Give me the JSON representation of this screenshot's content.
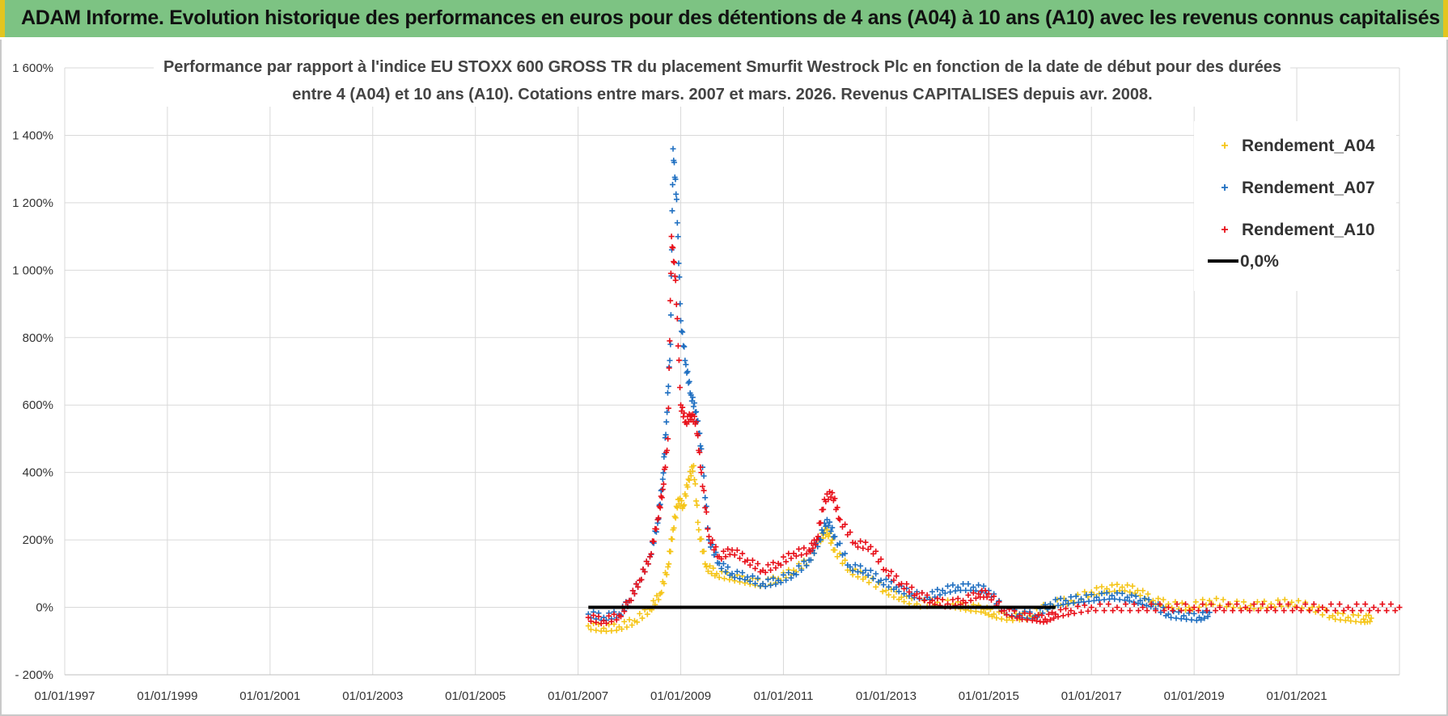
{
  "header": {
    "title": "ADAM Informe. Evolution historique des performances en euros pour des détentions de 4 ans (A04) à 10 ans (A10) avec les revenus connus capitalisés"
  },
  "colors": {
    "header_bg": "#7dc383",
    "a04": "#f5c518",
    "a07": "#1f6fc1",
    "a10": "#e8101a",
    "zero": "#000000",
    "grid": "#d9d9d9"
  },
  "chart_data": {
    "type": "scatter",
    "title_lines": [
      "Performance par rapport à l'indice EU STOXX 600 GROSS TR  du placement Smurfit Westrock Plc en fonction de la date de début pour des durées",
      "entre 4 (A04) et 10 ans (A10). Cotations entre mars. 2007 et mars. 2026. Revenus CAPITALISES depuis avr. 2008."
    ],
    "xlabel": "",
    "ylabel": "",
    "xlim": [
      1997.0,
      2023.0
    ],
    "ylim": [
      -200,
      1600
    ],
    "y_ticks": [
      -200,
      0,
      200,
      400,
      600,
      800,
      1000,
      1200,
      1400,
      1600
    ],
    "y_tick_labels": [
      "- 200%",
      "0%",
      "200%",
      "400%",
      "600%",
      "800%",
      "1 000%",
      "1 200%",
      "1 400%",
      "1 600%"
    ],
    "x_ticks": [
      1997,
      1999,
      2001,
      2003,
      2005,
      2007,
      2009,
      2011,
      2013,
      2015,
      2017,
      2019,
      2021
    ],
    "x_tick_labels": [
      "01/01/1997",
      "01/01/1999",
      "01/01/2001",
      "01/01/2003",
      "01/01/2005",
      "01/01/2007",
      "01/01/2009",
      "01/01/2011",
      "01/01/2013",
      "01/01/2015",
      "01/01/2017",
      "01/01/2019",
      "01/01/2021"
    ],
    "legend": {
      "position": "top-right",
      "entries": [
        "Rendement_A04",
        "Rendement_A07",
        "Rendement_A10",
        "0,0%"
      ]
    },
    "series": [
      {
        "name": "Rendement_A04",
        "x": [
          2007.2,
          2007.5,
          2007.8,
          2008.1,
          2008.4,
          2008.6,
          2008.75,
          2008.85,
          2008.95,
          2009.05,
          2009.15,
          2009.25,
          2009.35,
          2009.5,
          2009.7,
          2010.0,
          2010.3,
          2010.6,
          2010.9,
          2011.2,
          2011.5,
          2011.7,
          2011.85,
          2012.0,
          2012.3,
          2012.6,
          2013.0,
          2013.3,
          2013.6,
          2014.0,
          2014.3,
          2014.6,
          2014.9,
          2015.1,
          2015.4,
          2015.8,
          2016.2,
          2016.6,
          2017.0,
          2017.3,
          2017.6,
          2017.9,
          2018.2,
          2018.5,
          2018.9,
          2019.3,
          2019.7,
          2020.1,
          2020.5,
          2020.9,
          2021.3,
          2021.7,
          2022.0,
          2022.3,
          2022.45
        ],
        "y": [
          -55,
          -62,
          -58,
          -40,
          -5,
          40,
          120,
          230,
          320,
          300,
          380,
          420,
          230,
          120,
          100,
          90,
          80,
          70,
          85,
          110,
          140,
          200,
          230,
          170,
          110,
          90,
          50,
          30,
          10,
          15,
          10,
          0,
          -5,
          -20,
          -30,
          -25,
          10,
          20,
          45,
          55,
          60,
          50,
          20,
          10,
          0,
          20,
          10,
          5,
          10,
          15,
          0,
          -25,
          -30,
          -35,
          -32
        ]
      },
      {
        "name": "Rendement_A07",
        "x": [
          2007.2,
          2007.5,
          2007.8,
          2008.0,
          2008.2,
          2008.4,
          2008.55,
          2008.65,
          2008.72,
          2008.8,
          2008.85,
          2008.92,
          2009.0,
          2009.1,
          2009.2,
          2009.3,
          2009.4,
          2009.55,
          2009.75,
          2010.0,
          2010.3,
          2010.6,
          2010.9,
          2011.2,
          2011.5,
          2011.7,
          2011.85,
          2012.0,
          2012.3,
          2012.6,
          2012.9,
          2013.2,
          2013.5,
          2013.8,
          2014.1,
          2014.4,
          2014.7,
          2015.0,
          2015.3,
          2015.6,
          2015.9,
          2016.2,
          2016.5,
          2016.8,
          2017.1,
          2017.4,
          2017.7,
          2017.95,
          2018.2,
          2018.5,
          2018.8,
          2019.1,
          2019.3
        ],
        "y": [
          -20,
          -30,
          -20,
          20,
          80,
          150,
          250,
          380,
          550,
          780,
          1360,
          1210,
          850,
          720,
          630,
          580,
          470,
          200,
          130,
          100,
          90,
          70,
          80,
          100,
          140,
          200,
          260,
          210,
          120,
          110,
          80,
          60,
          40,
          30,
          50,
          60,
          60,
          50,
          -10,
          -20,
          -25,
          10,
          20,
          25,
          30,
          35,
          30,
          20,
          10,
          -20,
          -25,
          -30,
          -15
        ]
      },
      {
        "name": "Rendement_A10",
        "x": [
          2007.2,
          2007.5,
          2007.8,
          2008.0,
          2008.2,
          2008.4,
          2008.55,
          2008.65,
          2008.75,
          2008.82,
          2008.9,
          2009.0,
          2009.1,
          2009.2,
          2009.3,
          2009.4,
          2009.55,
          2009.75,
          2010.0,
          2010.3,
          2010.6,
          2010.9,
          2011.2,
          2011.5,
          2011.65,
          2011.8,
          2011.95,
          2012.1,
          2012.4,
          2012.7,
          2013.0,
          2013.3,
          2013.6,
          2013.9,
          2014.2,
          2014.5,
          2014.8,
          2015.0,
          2015.3,
          2015.6,
          2015.9,
          2016.1,
          2016.3,
          2016.6,
          2017.0,
          2017.5,
          2018.0,
          2018.5,
          2019.0,
          2019.5,
          2020.0,
          2020.5,
          2021.0,
          2021.5,
          2022.0,
          2022.5,
          2023.0
        ],
        "y": [
          -30,
          -40,
          -25,
          20,
          80,
          150,
          260,
          350,
          500,
          1100,
          970,
          600,
          550,
          570,
          550,
          400,
          210,
          150,
          170,
          140,
          110,
          130,
          160,
          170,
          200,
          320,
          340,
          260,
          190,
          180,
          110,
          70,
          40,
          20,
          10,
          20,
          40,
          40,
          -10,
          -25,
          -30,
          -35,
          -20,
          -10,
          0,
          0,
          0,
          0,
          0,
          0,
          0,
          0,
          0,
          0,
          0,
          0,
          0
        ]
      },
      {
        "name": "0,0%",
        "x": [
          2007.2,
          2016.3
        ],
        "y": [
          0,
          0
        ]
      }
    ]
  }
}
